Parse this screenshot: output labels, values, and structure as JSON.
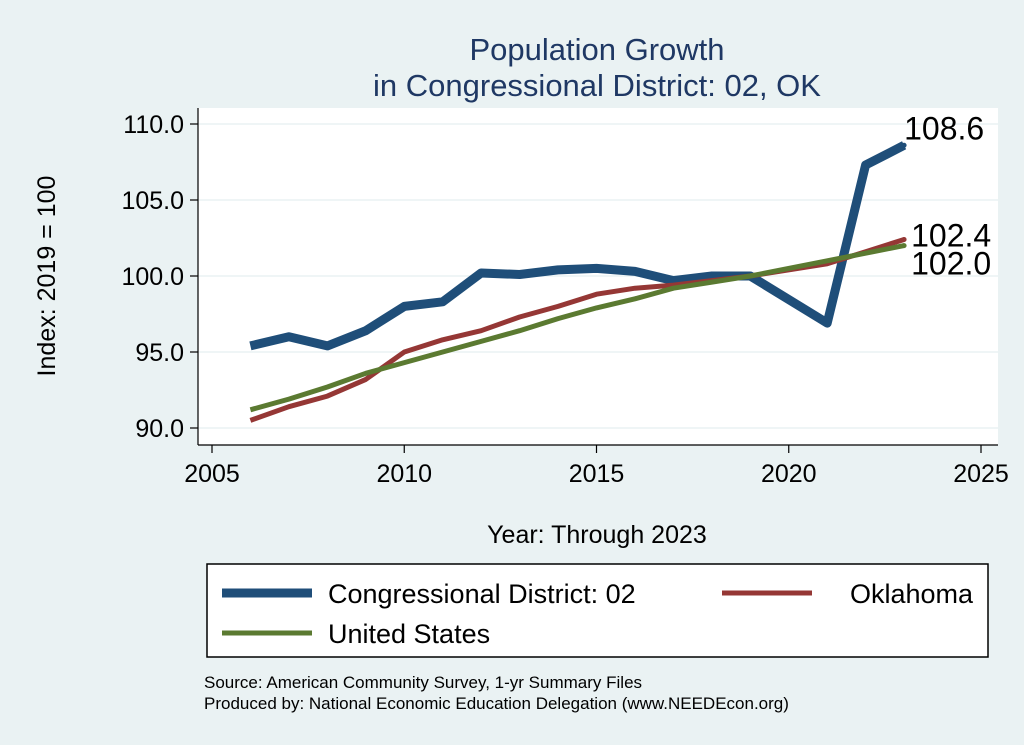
{
  "chart_data": {
    "type": "line",
    "title": [
      "Population Growth",
      "in Congressional District: 02, OK"
    ],
    "xlabel": "Year: Through 2023",
    "ylabel": "Index: 2019 = 100",
    "xlim": [
      2005,
      2025
    ],
    "ylim": [
      90,
      110
    ],
    "x_ticks": [
      "2005",
      "2010",
      "2015",
      "2020",
      "2025"
    ],
    "y_ticks": [
      "90.0",
      "95.0",
      "100.0",
      "105.0",
      "110.0"
    ],
    "grid": true,
    "legend_position": "bottom",
    "x": [
      2006,
      2007,
      2008,
      2009,
      2010,
      2011,
      2012,
      2013,
      2014,
      2015,
      2016,
      2017,
      2018,
      2019,
      2021,
      2022,
      2023
    ],
    "series": [
      {
        "name": "Congressional District: 02",
        "color": "#1f4e79",
        "width": 9,
        "values": [
          95.4,
          96.0,
          95.4,
          96.4,
          98.0,
          98.3,
          100.2,
          100.1,
          100.4,
          100.5,
          100.3,
          99.7,
          100.0,
          100.0,
          96.9,
          107.3,
          108.6
        ],
        "end_label": "108.6"
      },
      {
        "name": "Oklahoma",
        "color": "#953735",
        "width": 5,
        "values": [
          90.5,
          91.4,
          92.1,
          93.2,
          95.0,
          95.8,
          96.4,
          97.3,
          98.0,
          98.8,
          99.2,
          99.4,
          99.7,
          100.0,
          100.8,
          101.6,
          102.4
        ],
        "end_label": "102.4"
      },
      {
        "name": "United States",
        "color": "#5b7a31",
        "width": 5,
        "values": [
          91.2,
          91.9,
          92.7,
          93.6,
          94.3,
          95.0,
          95.7,
          96.4,
          97.2,
          97.9,
          98.5,
          99.2,
          99.6,
          100.0,
          101.0,
          101.5,
          102.0
        ],
        "end_label": "102.0"
      }
    ]
  },
  "source": [
    "Source: American Community Survey, 1-yr Summary Files",
    "Produced by: National Economic Education Delegation (www.NEEDEcon.org)"
  ]
}
